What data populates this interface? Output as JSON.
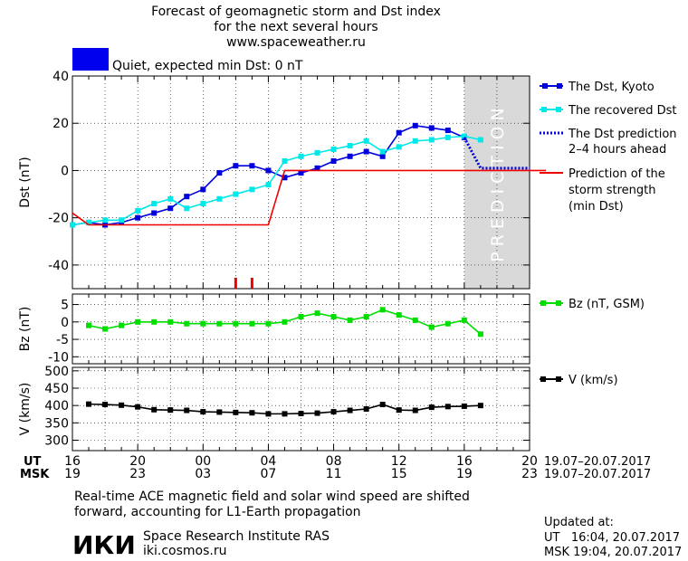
{
  "header": {
    "title_line1": "Forecast of geomagnetic storm and Dst index",
    "title_line2": "for the next several hours",
    "title_line3": "www.spaceweather.ru"
  },
  "status": {
    "color": "#0000ee",
    "text": "Quiet, expected min Dst: 0 nT"
  },
  "prediction_label": "PREDICTION",
  "time_axis": {
    "ut_label": "UT",
    "msk_label": "MSK",
    "ut_ticks": [
      "16",
      "20",
      "00",
      "04",
      "08",
      "12",
      "16",
      "20"
    ],
    "msk_ticks": [
      "19",
      "23",
      "03",
      "07",
      "11",
      "15",
      "19",
      "23"
    ],
    "ut_range": "19.07–20.07.2017",
    "msk_range": "19.07–20.07.2017"
  },
  "footer": {
    "note_line1": "Real-time ACE magnetic field and solar wind speed are shifted",
    "note_line2": "forward, accounting for L1-Earth propagation",
    "logo_text": "ИКИ",
    "institute": "Space Research Institute RAS",
    "site": "iki.cosmos.ru",
    "updated_label": "Updated at:",
    "updated_ut": "UT   16:04, 20.07.2017",
    "updated_msk": "MSK 19:04, 20.07.2017"
  },
  "chart_data": [
    {
      "type": "line",
      "ylabel": "Dst (nT)",
      "ylim": [
        -50,
        40
      ],
      "yticks": [
        40,
        20,
        0,
        -20,
        -40
      ],
      "x_unit": "hours after 16 UT, 19.07.2017",
      "xlim": [
        0,
        28
      ],
      "prediction_band": [
        24,
        28
      ],
      "storm_markers_x": [
        10,
        11
      ],
      "series": [
        {
          "name": "The Dst, Kyoto",
          "color": "#0000dd",
          "x": [
            0,
            1,
            2,
            3,
            4,
            5,
            6,
            7,
            8,
            9,
            10,
            11,
            12,
            13,
            14,
            15,
            16,
            17,
            18,
            19,
            20,
            21,
            22,
            23,
            24
          ],
          "values": [
            -23,
            -22,
            -23,
            -22,
            -20,
            -18,
            -16,
            -11,
            -8,
            -1,
            2,
            2,
            0,
            -3,
            -1,
            1,
            4,
            6,
            8,
            6,
            16,
            19,
            18,
            17,
            14
          ]
        },
        {
          "name": "The recovered Dst",
          "color": "#00e8e8",
          "x": [
            0,
            1,
            2,
            3,
            4,
            5,
            6,
            7,
            8,
            9,
            10,
            11,
            12,
            13,
            14,
            15,
            16,
            17,
            18,
            19,
            20,
            21,
            22,
            23,
            24,
            25
          ],
          "values": [
            -23,
            -22,
            -21,
            -21,
            -17,
            -14,
            -12,
            -16,
            -14,
            -12,
            -10,
            -8,
            -6,
            4,
            6,
            7.5,
            9,
            10.5,
            12.5,
            8,
            10,
            12.5,
            13,
            14,
            14.5,
            13
          ]
        },
        {
          "name": "The Dst prediction 2–4 hours ahead",
          "color": "#0000dd",
          "style": "dotted",
          "x": [
            24,
            25,
            26,
            27,
            28
          ],
          "values": [
            14,
            1,
            1,
            1,
            1
          ]
        },
        {
          "name": "Prediction of the storm strength (min Dst)",
          "color": "#ee0000",
          "x": [
            0,
            1,
            12,
            13,
            29
          ],
          "values": [
            -18,
            -23,
            -23,
            0,
            0
          ]
        }
      ]
    },
    {
      "type": "line",
      "ylabel": "Bz (nT)",
      "ylim": [
        -12,
        8
      ],
      "yticks": [
        5,
        0,
        -5,
        -10
      ],
      "xlim": [
        0,
        28
      ],
      "series": [
        {
          "name": "Bz (nT, GSM)",
          "color": "#00dd00",
          "x": [
            1,
            2,
            3,
            4,
            5,
            6,
            7,
            8,
            9,
            10,
            11,
            12,
            13,
            14,
            15,
            16,
            17,
            18,
            19,
            20,
            21,
            22,
            23,
            24,
            25
          ],
          "values": [
            -1,
            -2,
            -1,
            0,
            0,
            0,
            -0.5,
            -0.5,
            -0.5,
            -0.5,
            -0.5,
            -0.5,
            0,
            1.5,
            2.5,
            1.5,
            0.5,
            1.5,
            3.5,
            2,
            0.5,
            -1.5,
            -0.5,
            0.5,
            -3.5
          ]
        }
      ]
    },
    {
      "type": "line",
      "ylabel": "V (km/s)",
      "ylim": [
        270,
        510
      ],
      "yticks": [
        500,
        450,
        400,
        350,
        300
      ],
      "xlim": [
        0,
        28
      ],
      "series": [
        {
          "name": "V (km/s)",
          "color": "#000000",
          "x": [
            1,
            2,
            3,
            4,
            5,
            6,
            7,
            8,
            9,
            10,
            11,
            12,
            13,
            14,
            15,
            16,
            17,
            18,
            19,
            20,
            21,
            22,
            23,
            24,
            25
          ],
          "values": [
            404,
            403,
            401,
            396,
            388,
            387,
            386,
            382,
            381,
            380,
            379,
            376,
            376,
            377,
            378,
            382,
            386,
            390,
            403,
            387,
            386,
            395,
            397,
            398,
            400
          ]
        }
      ]
    }
  ]
}
